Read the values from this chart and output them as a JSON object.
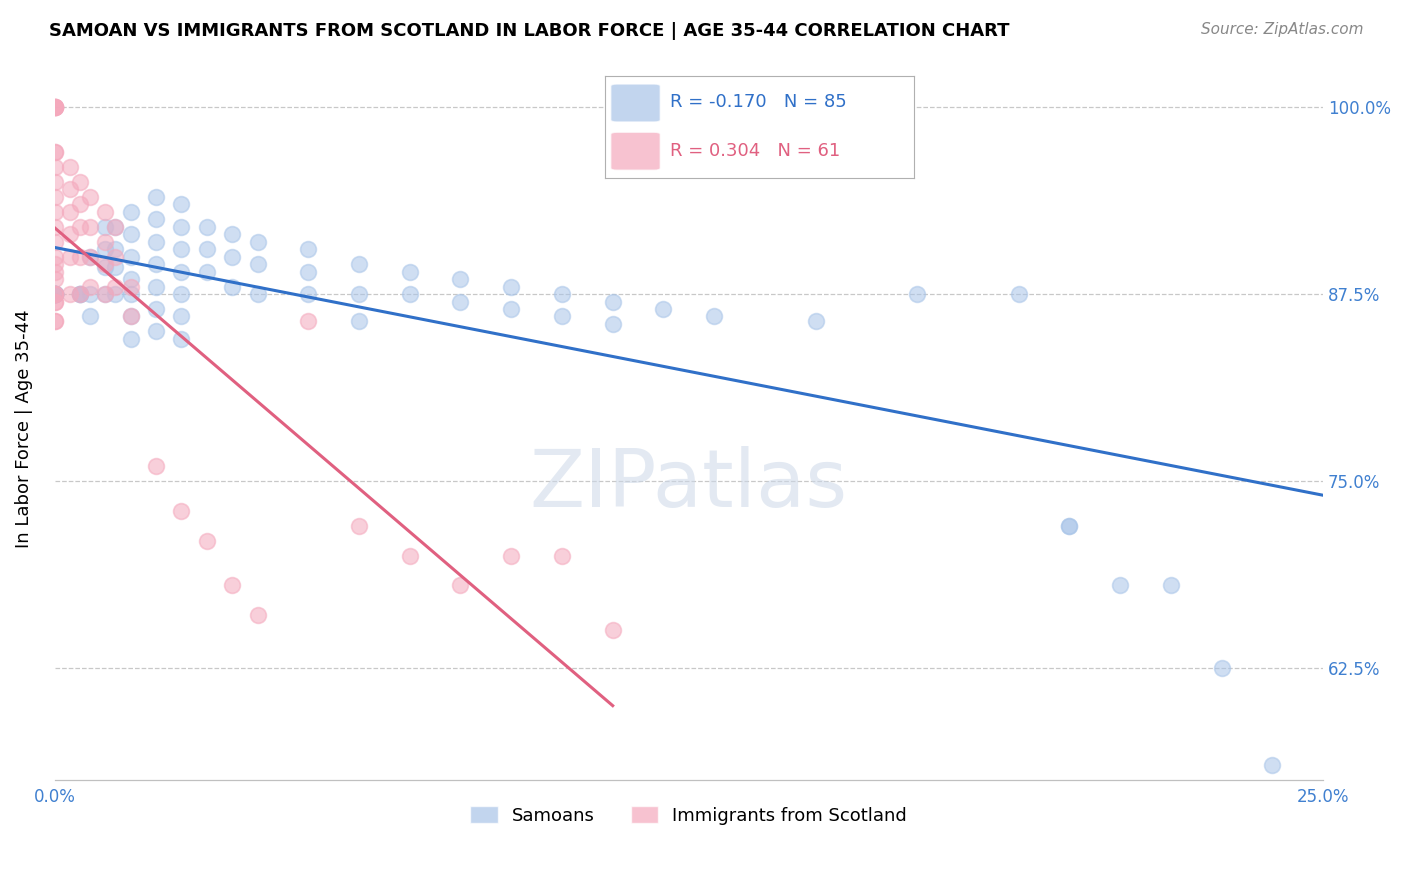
{
  "title": "SAMOAN VS IMMIGRANTS FROM SCOTLAND IN LABOR FORCE | AGE 35-44 CORRELATION CHART",
  "source": "Source: ZipAtlas.com",
  "ylabel": "In Labor Force | Age 35-44",
  "xlim": [
    0.0,
    0.25
  ],
  "ylim": [
    0.55,
    1.02
  ],
  "xticks": [
    0.0,
    0.05,
    0.1,
    0.15,
    0.2,
    0.25
  ],
  "xticklabels": [
    "0.0%",
    "",
    "",
    "",
    "",
    "25.0%"
  ],
  "yticks": [
    0.625,
    0.75,
    0.875,
    1.0
  ],
  "yticklabels": [
    "62.5%",
    "75.0%",
    "87.5%",
    "100.0%"
  ],
  "blue_r": -0.17,
  "blue_n": 85,
  "pink_r": 0.304,
  "pink_n": 61,
  "blue_color": "#a8c4e8",
  "pink_color": "#f4a8bc",
  "blue_line_color": "#3070c8",
  "pink_line_color": "#e06080",
  "blue_points": [
    [
      0.0,
      0.875
    ],
    [
      0.0,
      0.875
    ],
    [
      0.0,
      0.875
    ],
    [
      0.0,
      0.875
    ],
    [
      0.0,
      0.875
    ],
    [
      0.0,
      0.875
    ],
    [
      0.0,
      0.875
    ],
    [
      0.0,
      0.875
    ],
    [
      0.0,
      0.875
    ],
    [
      0.0,
      0.875
    ],
    [
      0.005,
      0.875
    ],
    [
      0.005,
      0.875
    ],
    [
      0.005,
      0.875
    ],
    [
      0.007,
      0.9
    ],
    [
      0.007,
      0.875
    ],
    [
      0.007,
      0.86
    ],
    [
      0.01,
      0.92
    ],
    [
      0.01,
      0.905
    ],
    [
      0.01,
      0.893
    ],
    [
      0.01,
      0.875
    ],
    [
      0.012,
      0.92
    ],
    [
      0.012,
      0.905
    ],
    [
      0.012,
      0.893
    ],
    [
      0.012,
      0.875
    ],
    [
      0.015,
      0.93
    ],
    [
      0.015,
      0.915
    ],
    [
      0.015,
      0.9
    ],
    [
      0.015,
      0.885
    ],
    [
      0.015,
      0.875
    ],
    [
      0.015,
      0.86
    ],
    [
      0.015,
      0.845
    ],
    [
      0.02,
      0.94
    ],
    [
      0.02,
      0.925
    ],
    [
      0.02,
      0.91
    ],
    [
      0.02,
      0.895
    ],
    [
      0.02,
      0.88
    ],
    [
      0.02,
      0.865
    ],
    [
      0.02,
      0.85
    ],
    [
      0.025,
      0.935
    ],
    [
      0.025,
      0.92
    ],
    [
      0.025,
      0.905
    ],
    [
      0.025,
      0.89
    ],
    [
      0.025,
      0.875
    ],
    [
      0.025,
      0.86
    ],
    [
      0.025,
      0.845
    ],
    [
      0.03,
      0.92
    ],
    [
      0.03,
      0.905
    ],
    [
      0.03,
      0.89
    ],
    [
      0.035,
      0.915
    ],
    [
      0.035,
      0.9
    ],
    [
      0.035,
      0.88
    ],
    [
      0.04,
      0.91
    ],
    [
      0.04,
      0.895
    ],
    [
      0.04,
      0.875
    ],
    [
      0.05,
      0.905
    ],
    [
      0.05,
      0.89
    ],
    [
      0.05,
      0.875
    ],
    [
      0.06,
      0.895
    ],
    [
      0.06,
      0.875
    ],
    [
      0.06,
      0.857
    ],
    [
      0.07,
      0.89
    ],
    [
      0.07,
      0.875
    ],
    [
      0.08,
      0.885
    ],
    [
      0.08,
      0.87
    ],
    [
      0.09,
      0.88
    ],
    [
      0.09,
      0.865
    ],
    [
      0.1,
      0.875
    ],
    [
      0.1,
      0.86
    ],
    [
      0.11,
      0.87
    ],
    [
      0.11,
      0.855
    ],
    [
      0.12,
      0.865
    ],
    [
      0.13,
      0.86
    ],
    [
      0.15,
      0.857
    ],
    [
      0.16,
      0.96
    ],
    [
      0.16,
      0.96
    ],
    [
      0.17,
      0.875
    ],
    [
      0.19,
      0.875
    ],
    [
      0.2,
      0.72
    ],
    [
      0.2,
      0.72
    ],
    [
      0.21,
      0.68
    ],
    [
      0.22,
      0.68
    ],
    [
      0.23,
      0.625
    ],
    [
      0.24,
      0.56
    ]
  ],
  "pink_points": [
    [
      0.0,
      1.0
    ],
    [
      0.0,
      1.0
    ],
    [
      0.0,
      1.0
    ],
    [
      0.0,
      1.0
    ],
    [
      0.0,
      1.0
    ],
    [
      0.0,
      0.97
    ],
    [
      0.0,
      0.97
    ],
    [
      0.0,
      0.96
    ],
    [
      0.0,
      0.95
    ],
    [
      0.0,
      0.94
    ],
    [
      0.0,
      0.93
    ],
    [
      0.0,
      0.92
    ],
    [
      0.0,
      0.91
    ],
    [
      0.0,
      0.9
    ],
    [
      0.0,
      0.895
    ],
    [
      0.0,
      0.89
    ],
    [
      0.0,
      0.885
    ],
    [
      0.0,
      0.875
    ],
    [
      0.0,
      0.875
    ],
    [
      0.0,
      0.87
    ],
    [
      0.0,
      0.87
    ],
    [
      0.0,
      0.857
    ],
    [
      0.0,
      0.857
    ],
    [
      0.003,
      0.96
    ],
    [
      0.003,
      0.945
    ],
    [
      0.003,
      0.93
    ],
    [
      0.003,
      0.915
    ],
    [
      0.003,
      0.9
    ],
    [
      0.003,
      0.875
    ],
    [
      0.005,
      0.95
    ],
    [
      0.005,
      0.935
    ],
    [
      0.005,
      0.92
    ],
    [
      0.005,
      0.9
    ],
    [
      0.005,
      0.875
    ],
    [
      0.007,
      0.94
    ],
    [
      0.007,
      0.92
    ],
    [
      0.007,
      0.9
    ],
    [
      0.007,
      0.88
    ],
    [
      0.01,
      0.93
    ],
    [
      0.01,
      0.91
    ],
    [
      0.01,
      0.895
    ],
    [
      0.01,
      0.875
    ],
    [
      0.012,
      0.92
    ],
    [
      0.012,
      0.9
    ],
    [
      0.012,
      0.88
    ],
    [
      0.015,
      0.88
    ],
    [
      0.015,
      0.86
    ],
    [
      0.02,
      0.76
    ],
    [
      0.025,
      0.73
    ],
    [
      0.03,
      0.71
    ],
    [
      0.035,
      0.68
    ],
    [
      0.04,
      0.66
    ],
    [
      0.05,
      0.857
    ],
    [
      0.06,
      0.72
    ],
    [
      0.07,
      0.7
    ],
    [
      0.08,
      0.68
    ],
    [
      0.09,
      0.7
    ],
    [
      0.1,
      0.7
    ],
    [
      0.11,
      0.65
    ]
  ]
}
